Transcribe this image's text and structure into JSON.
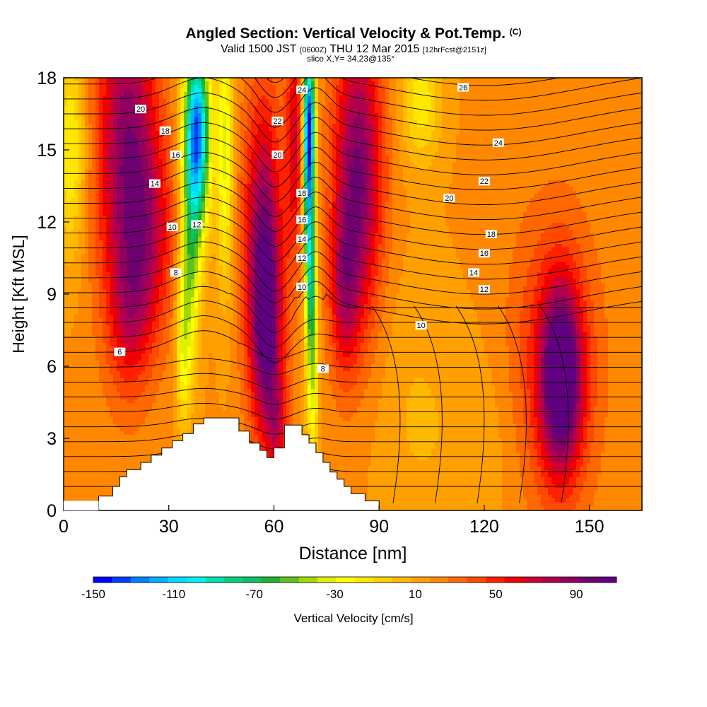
{
  "title": {
    "main": "Angled Section: Vertical Velocity & Pot.Temp.",
    "main_unit": "(C)",
    "valid_a": "Valid 1500 JST",
    "valid_small": "(0600Z)",
    "valid_b": "THU 12 Mar 2015",
    "valid_fcst": "[12hrFcst@2151z]",
    "slice": "slice X,Y= 34,23@135°"
  },
  "colors": {
    "white": "#ffffff",
    "black": "#000000"
  },
  "chart_data": {
    "type": "heatmap",
    "xlabel": "Distance [nm]",
    "ylabel": "Height [Kft MSL]",
    "xlim": [
      0,
      165
    ],
    "ylim": [
      0,
      18
    ],
    "x_ticks": [
      0,
      30,
      60,
      90,
      120,
      150
    ],
    "y_ticks": [
      0,
      3,
      6,
      9,
      12,
      15,
      18
    ],
    "colorbar": {
      "label": "Vertical Velocity [cm/s]",
      "range": [
        -150,
        110
      ],
      "tick_labels": [
        -150,
        -110,
        -70,
        -30,
        10,
        50,
        90
      ],
      "colors": [
        "#0000ff",
        "#0040ff",
        "#0080ff",
        "#00b0ff",
        "#00d8ff",
        "#00f0f0",
        "#00e0b0",
        "#00d080",
        "#10c060",
        "#20b030",
        "#60c020",
        "#a0d800",
        "#e0f000",
        "#ffff00",
        "#ffe800",
        "#ffd000",
        "#ffb800",
        "#ffa000",
        "#ff8800",
        "#ff6800",
        "#ff4800",
        "#ff2000",
        "#f00000",
        "#d00030",
        "#b00050",
        "#900060",
        "#700070",
        "#600080"
      ]
    },
    "terrain": [
      [
        10,
        0.6
      ],
      [
        14,
        0.6
      ],
      [
        14,
        1.0
      ],
      [
        16,
        1.0
      ],
      [
        16,
        1.4
      ],
      [
        18,
        1.4
      ],
      [
        18,
        1.7
      ],
      [
        22,
        1.7
      ],
      [
        22,
        2.0
      ],
      [
        25,
        2.0
      ],
      [
        25,
        2.3
      ],
      [
        28,
        2.3
      ],
      [
        28,
        2.6
      ],
      [
        31,
        2.6
      ],
      [
        31,
        2.9
      ],
      [
        34,
        2.9
      ],
      [
        34,
        3.2
      ],
      [
        37,
        3.2
      ],
      [
        37,
        3.6
      ],
      [
        40,
        3.6
      ],
      [
        40,
        3.85
      ],
      [
        50,
        3.85
      ],
      [
        50,
        3.3
      ],
      [
        53,
        3.3
      ],
      [
        53,
        2.8
      ],
      [
        56,
        2.8
      ],
      [
        56,
        2.5
      ],
      [
        58,
        2.5
      ],
      [
        58,
        2.2
      ],
      [
        60,
        2.2
      ],
      [
        60,
        2.6
      ],
      [
        63,
        2.6
      ],
      [
        63,
        3.55
      ],
      [
        68,
        3.55
      ],
      [
        68,
        3.15
      ],
      [
        70,
        3.15
      ],
      [
        70,
        2.8
      ],
      [
        72,
        2.8
      ],
      [
        72,
        2.4
      ],
      [
        74,
        2.4
      ],
      [
        74,
        2.0
      ],
      [
        76,
        2.0
      ],
      [
        76,
        1.6
      ],
      [
        78,
        1.6
      ],
      [
        78,
        1.3
      ],
      [
        80,
        1.3
      ],
      [
        80,
        1.0
      ],
      [
        82,
        1.0
      ],
      [
        82,
        0.7
      ],
      [
        86,
        0.7
      ],
      [
        86,
        0.4
      ],
      [
        90,
        0.4
      ]
    ],
    "vv_blobs": [
      {
        "x": 18,
        "y": 15,
        "sx": 6,
        "sy": 5.5,
        "v": 70
      },
      {
        "x": 25,
        "y": 11.5,
        "sx": 5,
        "sy": 3,
        "v": 35
      },
      {
        "x": 19,
        "y": 8,
        "sx": 4,
        "sy": 2,
        "v": 25
      },
      {
        "x": 38,
        "y": 16.5,
        "sx": 2.6,
        "sy": 2.2,
        "v": -100
      },
      {
        "x": 38,
        "y": 14,
        "sx": 2.5,
        "sy": 2.5,
        "v": -75
      },
      {
        "x": 36,
        "y": 10,
        "sx": 2,
        "sy": 3,
        "v": -55
      },
      {
        "x": 34,
        "y": 6.5,
        "sx": 1.5,
        "sy": 2.2,
        "v": -35
      },
      {
        "x": 46,
        "y": 15,
        "sx": 1.7,
        "sy": 4,
        "v": -50
      },
      {
        "x": 57,
        "y": 11,
        "sx": 4,
        "sy": 4.5,
        "v": 70
      },
      {
        "x": 58,
        "y": 7,
        "sx": 3,
        "sy": 3,
        "v": 50
      },
      {
        "x": 61,
        "y": 3.5,
        "sx": 2,
        "sy": 1.5,
        "v": 35
      },
      {
        "x": 66,
        "y": 15.5,
        "sx": 1.8,
        "sy": 3.5,
        "v": 45
      },
      {
        "x": 70,
        "y": 16.5,
        "sx": 1.2,
        "sy": 2.2,
        "v": -130
      },
      {
        "x": 70,
        "y": 13,
        "sx": 1.1,
        "sy": 2.5,
        "v": -90
      },
      {
        "x": 70.5,
        "y": 9.5,
        "sx": 1.1,
        "sy": 2.2,
        "v": -65
      },
      {
        "x": 71,
        "y": 5.5,
        "sx": 1.2,
        "sy": 2.6,
        "v": -50
      },
      {
        "x": 84,
        "y": 14,
        "sx": 5,
        "sy": 4.5,
        "v": 75
      },
      {
        "x": 80,
        "y": 9,
        "sx": 3,
        "sy": 2.5,
        "v": 40
      },
      {
        "x": 102,
        "y": 17,
        "sx": 4,
        "sy": 1.8,
        "v": -35
      },
      {
        "x": 2,
        "y": 15,
        "sx": 3,
        "sy": 3,
        "v": -40
      },
      {
        "x": 142,
        "y": 5.5,
        "sx": 4,
        "sy": 2.6,
        "v": 85
      },
      {
        "x": 140,
        "y": 6,
        "sx": 9,
        "sy": 4.5,
        "v": 35
      },
      {
        "x": 120,
        "y": 3,
        "sx": 10,
        "sy": 3,
        "v": -8
      },
      {
        "x": 100,
        "y": 4,
        "sx": 8,
        "sy": 4,
        "v": -10
      }
    ],
    "isotherm_labels": [
      {
        "x": 22,
        "y": 16.7,
        "t": "20"
      },
      {
        "x": 29,
        "y": 15.8,
        "t": "18"
      },
      {
        "x": 32,
        "y": 14.8,
        "t": "16"
      },
      {
        "x": 26,
        "y": 13.6,
        "t": "14"
      },
      {
        "x": 31,
        "y": 11.8,
        "t": "10"
      },
      {
        "x": 32,
        "y": 9.9,
        "t": "8"
      },
      {
        "x": 38,
        "y": 11.9,
        "t": "12"
      },
      {
        "x": 16,
        "y": 6.6,
        "t": "6"
      },
      {
        "x": 61,
        "y": 16.2,
        "t": "22"
      },
      {
        "x": 61,
        "y": 14.8,
        "t": "20"
      },
      {
        "x": 68,
        "y": 17.5,
        "t": "24"
      },
      {
        "x": 68,
        "y": 13.2,
        "t": "18"
      },
      {
        "x": 68,
        "y": 12.1,
        "t": "16"
      },
      {
        "x": 68,
        "y": 11.3,
        "t": "14"
      },
      {
        "x": 68,
        "y": 10.5,
        "t": "12"
      },
      {
        "x": 68,
        "y": 9.3,
        "t": "10"
      },
      {
        "x": 74,
        "y": 5.9,
        "t": "8"
      },
      {
        "x": 102,
        "y": 7.7,
        "t": "10"
      },
      {
        "x": 120,
        "y": 9.2,
        "t": "12"
      },
      {
        "x": 117,
        "y": 9.9,
        "t": "14"
      },
      {
        "x": 120,
        "y": 10.7,
        "t": "16"
      },
      {
        "x": 122,
        "y": 11.5,
        "t": "18"
      },
      {
        "x": 110,
        "y": 13.0,
        "t": "20"
      },
      {
        "x": 120,
        "y": 13.7,
        "t": "22"
      },
      {
        "x": 124,
        "y": 15.3,
        "t": "24"
      },
      {
        "x": 114,
        "y": 17.6,
        "t": "26"
      }
    ]
  }
}
